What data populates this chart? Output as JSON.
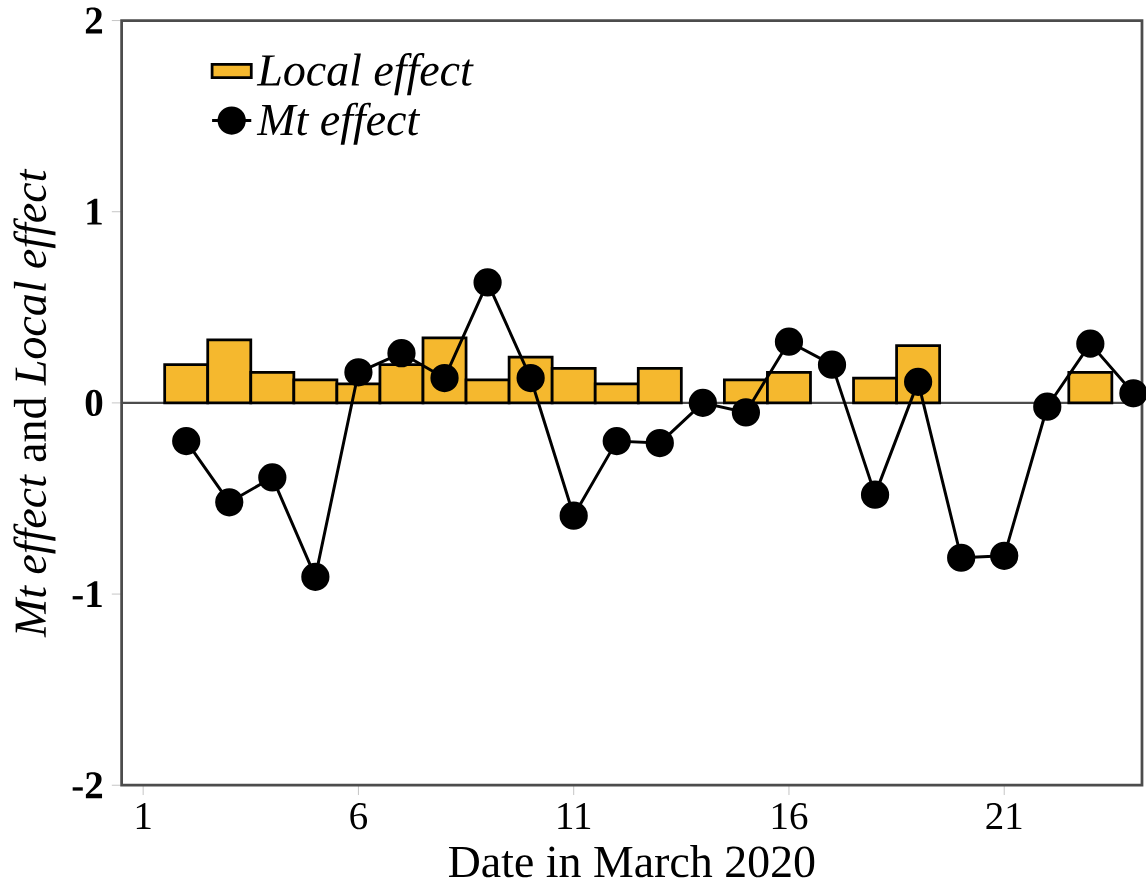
{
  "chart_data": {
    "type": "bar",
    "xlabel": "Date in March 2020",
    "ylabel": "*Mt effect* and *Local effect*",
    "x": [
      2,
      3,
      4,
      5,
      6,
      7,
      8,
      9,
      10,
      11,
      12,
      13,
      14,
      15,
      16,
      17,
      18,
      19,
      20,
      21,
      22,
      23,
      24
    ],
    "series": [
      {
        "name": "Local effect",
        "color": "#f5b82e",
        "values": [
          0.2,
          0.33,
          0.16,
          0.12,
          0.1,
          0.2,
          0.34,
          0.12,
          0.24,
          0.18,
          0.1,
          0.18,
          null,
          0.12,
          0.16,
          null,
          0.13,
          0.3,
          null,
          null,
          null,
          0.16,
          null
        ]
      },
      {
        "name": "Mt effect",
        "type": "line",
        "color": "#000000",
        "marker": "circle",
        "values": [
          -0.2,
          -0.52,
          -0.39,
          -0.91,
          0.16,
          0.26,
          0.13,
          0.63,
          0.13,
          -0.59,
          -0.2,
          -0.21,
          0.0,
          -0.05,
          0.32,
          0.2,
          -0.48,
          0.11,
          -0.81,
          -0.8,
          -0.02,
          0.31,
          0.05
        ]
      }
    ],
    "xlim": [
      0.5,
      24.2
    ],
    "ylim": [
      -2,
      2
    ],
    "xticks": [
      1,
      6,
      11,
      16,
      21
    ],
    "yticks": [
      -2,
      -1,
      0,
      1,
      2
    ],
    "ref_lines": [
      {
        "axis": "y",
        "value": 0
      }
    ],
    "grid": false,
    "legend": "top left"
  }
}
